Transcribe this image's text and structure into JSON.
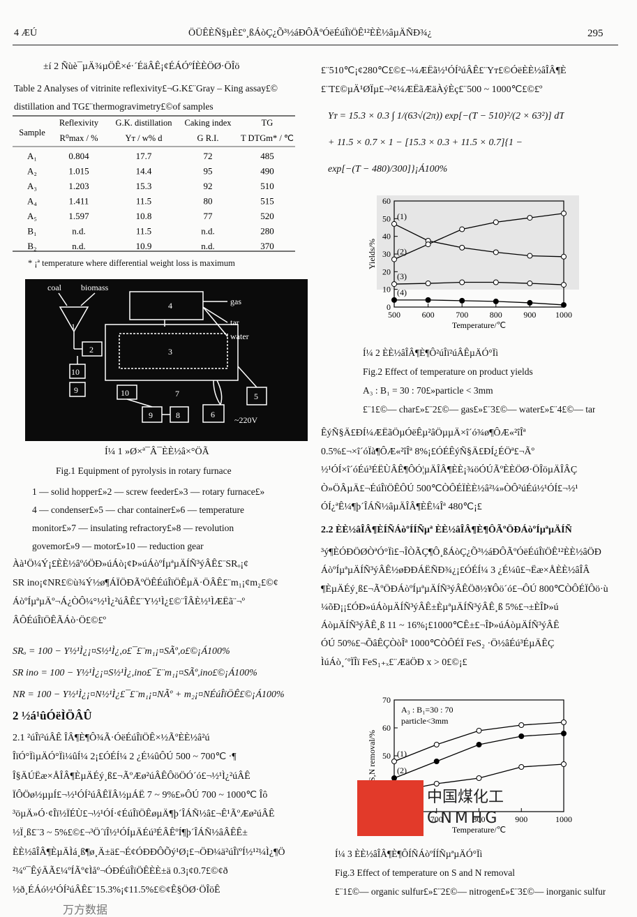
{
  "header": {
    "issue": "4 ÆÚ",
    "title": "ÖÜÊÈÑ§µÈ£º¸ßÁòÇ¿Õ³½áÐÔÃºÓëÉúÎïÖÊ¹²ÈÈ½âµÄÑÐ¾¿",
    "page_number": "295"
  },
  "table": {
    "caption_cn": "±í 2   Ñùè¯µÄ¾µÖÊ×é·´ÉäÂÊ¡¢ÉÁÓºÍÈÈÖØ·ÖÎö",
    "caption_en": [
      "Table 2    Analyses of vitrinite reflexivity£¬G.K£¨Gray – King assay£©",
      "distillation and TG£¨thermogravimetry£©of samples"
    ],
    "header": [
      [
        "Sample"
      ],
      [
        "Reflexivity",
        "R⁰max / %"
      ],
      [
        "G.K. distillation",
        "Yᴛ / w% d"
      ],
      [
        "Caking index",
        "G R.I."
      ],
      [
        "TG",
        "T DTGm* / ℃"
      ]
    ],
    "rows": [
      [
        "A₁",
        "0.804",
        "17.7",
        "72",
        "485"
      ],
      [
        "A₂",
        "1.015",
        "14.4",
        "95",
        "490"
      ],
      [
        "A₃",
        "1.203",
        "15.3",
        "92",
        "510"
      ],
      [
        "A₄",
        "1.411",
        "11.5",
        "80",
        "515"
      ],
      [
        "A₅",
        "1.597",
        "10.8",
        "77",
        "520"
      ],
      [
        "B₁",
        "n.d.",
        "11.5",
        "n.d.",
        "280"
      ],
      [
        "B₂",
        "n.d.",
        "10.9",
        "n.d.",
        "370"
      ]
    ],
    "footnote": "* ¡ª temperature where differential weight loss is maximum"
  },
  "figure1": {
    "labels": [
      "coal",
      "biomass",
      "gas",
      "tar",
      "water",
      "1",
      "2",
      "3",
      "4",
      "5",
      "6",
      "7",
      "8",
      "9",
      "10",
      "10",
      "9",
      "~220V"
    ],
    "caption_cn": "Í¼ 1   »Ø×ª¯Â¯ÈÈ½â×°ÖÃ",
    "caption_en": "Fig.1   Equipment of pyrolysis in rotary furnace",
    "legend": [
      "1 — solid hopper£»2 — screw feeder£»3 — rotary furnace£»",
      "4 — condenser£»5 — char container£»6 — temperature",
      "monitor£»7 — insulating refractory£»8 — revolution",
      "govemor£»9 — motor£»10 — reduction gear"
    ]
  },
  "left_text": [
    "Àà¹Ö¼Ý¡£ÈÈ½âºóÖÐ»úÁò¡¢Þ»úÁòºÍµªµÄÍÑ³ýÂÊ£¨SRₒ¡¢",
    "SR ino¡¢NR£©ù¾Ý½ø¶ÁÏÖÐÃºÖÊÉúÎïÖÊµÄ·ÖÂÊ£¨m₁¡¢m₂£©¢",
    "ÁòºÍµªµÄº¬Á¿ÒÔ¼°½¹Ì¿²úÂÊ£¨Y½¹Ì¿£©¨ÎÂÈ½¹ÌÆËã¨¬º",
    "ÂÔÉúÎïÖÊÃÁò·Ö£©£º"
  ],
  "left_equations": [
    "SRₒ = 100 − Y½¹Ì¿¡¤S½¹Ì¿,o£¯£¨m₁¡¤SÃº,o£©¡Á100%",
    "SR ino = 100 − Y½¹Ì¿¡¤S½¹Ì¿,ino£¯£¨m₁¡¤SÃº,ino£©¡Á100%",
    "NR = 100 − Y½¹Ì¿¡¤N½¹Ì¿£¯£¨m₁¡¤NÃº + m₂¡¤NÉúÎïÖÊ£©¡Á100%"
  ],
  "section_2_heading": "2   ½á¹ûÓëÌÖÂÛ",
  "left_text_2": [
    "2.1   ²úÎï²úÂÊ   ÎÂ¶È¶Ô¾­Ã·ÓëÉúÎïÖÊ×½ÃºÈÈ½â²ú",
    "ÎïÓ°ÏìµÄÓ°Ïì¼ûÍ¼ 2¡£ÓÉÍ¼ 2 ¿É¼ûÔÚ 500 ~ 700℃ ·¶",
    "Î§ÄÚËæ×ÅÎÂ¶ÈµÄÉý¸ß£¬ÃºÆø²úÂÊÔöÖÓ´ó£¬½¹Ì¿²úÂÊ",
    "ÏÔÖø½µµÍ£¬½¹ÓÍ²úÂÊÏÂ½µÁË 7 ~ 9%£»ÔÚ 700 ~ 1000℃ Îô",
    "³öµÄ»Ó·¢Îï½ÏÉÙ£¬½¹ÓÍ·¢ÉúÎïÖÊøµÄ¶þ´ÎÁÑ½â£¬Ê¹ÃºÆø²úÂÊ",
    "½Ï¸ß£¨3 ~ 5%£©£¬³Ö´ïÎ½¹ÓÍµÄÉú³ÉÂÊºÍ¶þ´ÎÁÑ½âÂÊÊ±",
    "ÈÈ½âÎÂ¶ÈµÄÌá¸ß¶ø¸Ä±ä£¬É¢ÓÐÐÔÕý¹Ø¡£¬ÖÐ¼ä²úÎïºÍ½¹²¼Ì¿¶Ö",
    "²¼º¯ÊýÄÃ£¼ºÍÃº¢Ìåº¬ÓÐÉúÎïÖÊÈÈ±ä 0.3¡¢0.7£©¢ð",
    "½ð¸ÉÁó½¹ÓÍ²úÂÊ£¨15.3%¡¢11.5%£©¢Ê§ÖØ·ÖÎöÊ"
  ],
  "right_text": [
    "£¨510℃¡¢280℃£©£¬¼ÆËã½¹ÓÍ²úÂÊ£¨Yᴛ£©ÓëÈÈ½âÎÂ¶È",
    "£¨T£©µÄ¹ØÏµ£¬²¢¼ÆËãÆäÀýÈç£¨500 ~ 1000℃£©£º"
  ],
  "right_equations": [
    "Yᴛ = 15.3 × 0.3 ∫ 1/(63√(2π)) exp[−(T − 510)²/(2 × 63²)] dT",
    "+ 11.5 × 0.7 × 1 − [15.3 × 0.3 + 11.5 × 0.7]{1 −",
    "exp[−(T − 480)/300]}¡Á100%"
  ],
  "figure2": {
    "type": "line",
    "xlabel": "Temperature/℃",
    "ylabel": "Yields/%",
    "x": [
      500,
      600,
      700,
      800,
      900,
      1000
    ],
    "xlim": [
      500,
      1000
    ],
    "ylim": [
      0,
      60
    ],
    "xticks": [
      500,
      600,
      700,
      800,
      900,
      1000
    ],
    "yticks": [
      0,
      10,
      20,
      30,
      40,
      50,
      60
    ],
    "color": "#000000",
    "series": [
      {
        "name": "(1)",
        "marker": "open",
        "values": [
          47,
          37.5,
          33.6,
          31,
          29,
          28.5
        ]
      },
      {
        "name": "(2)",
        "marker": "open",
        "values": [
          27,
          35.5,
          44,
          48,
          50.5,
          53
        ]
      },
      {
        "name": "(3)",
        "marker": "open",
        "values": [
          13,
          13.4,
          14,
          14,
          13.4,
          12.6
        ]
      },
      {
        "name": "(4)",
        "marker": "filled",
        "values": [
          4,
          4,
          3.6,
          3.2,
          2.4,
          1.2
        ]
      }
    ],
    "caption": [
      "Í¼ 2   ÈÈ½âÎÂ¶È¶Ô²úÎï²úÂÊµÄÓ°Ïì",
      "Fig.2   Effect of temperature on product yields",
      "A₃ : B₁ = 30 : 70£»particle < 3mm",
      "£¨1£©— char£»£¨2£©— gas£»£¨3£©— water£»£¨4£©— tar"
    ]
  },
  "right_text_2": [
    "ÊýÑ§Ä£ÐÍ¼ÆËãÖµÓëÊµ²âÖµµÄ×î´ó¾ø¶ÔÆ«²îÎª",
    "0.5%£¬×î´óÏà¶ÔÆ«²îÎª 8%¡£ÓÉÊýÑ§Ä£ÐÍ¿ÉÖª£¬Ãº",
    "½¹ÓÍ×î´óÉú³ÉËÙÂÊ¶ÔÓ¦µÄÎÂ¶ÈÈ¡¾öÓÚÃºÈÈÖØ·ÖÎöµÄÎÂÇ",
    "Ò»ÖÂµÄ£¬ÉúÎïÖÊÔÚ 500℃ÒÔÉÏÈÈ½â²¼»ÒÔ²úÉú½¹ÓÍ£¬½¹",
    "ÓÍ¿ªÊ¼¶þ´ÎÁÑ½âµÄÎÂ¶ÈÊ¼Îª 480℃¡£"
  ],
  "section_2_2_heading": "2.2   ÈÈ½âÎÂ¶ÈÍÑÁòºÍÍÑµª   ÈÈ½âÎÂ¶È¶ÔÃºÖÐÁòºÍµªµÄÍÑ",
  "right_text_3": [
    "³ý¶ÈÓÐÖØÒªÓ°Ïì£¬ÎÒÃÇ¶Ô¸ßÁòÇ¿Õ³½áÐÔÃºÓëÉúÎïÖÊ¹²ÈÈ½âÖÐ",
    "ÁòºÍµªµÄÍÑ³ýÂÊ½øÐÐÁËÑÐ¾¿¡£ÓÉÍ¼ 3 ¿É¼û£¬Ëæ×ÅÈÈ½âÎÂ",
    "¶ÈµÄÉý¸ß£¬ÃºÖÐÁòºÍµªµÄÍÑ³ýÂÊÖð½¥Ôö´ó£¬ÔÚ 800℃ÒÔÉÏÔö·ù",
    "¼õÐ¡¡£ÓÐ»úÁòµÄÍÑ³ýÂÊ±ÈµªµÄÍÑ³ýÂÊ¸ß 5%£¬±ÈÎÞ»ú",
    "ÁòµÄÍÑ³ýÂÊ¸ß 11 ~ 16%¡£1000℃Ê±£¬ÎÞ»úÁòµÄÍÑ³ýÂÊ",
    "ÓÚ 50%£¬ÕâÊÇÒòÎª 1000℃ÒÔÉÏ FeS₂ ·Ö½âÉú³ÉµÄÊÇ",
    "ÌúÁò¸´ºÏÎï FeS₁₊ₓ£¨ÆäÖÐ x > 0£©¡£"
  ],
  "figure3": {
    "type": "line",
    "xlabel": "Temperature/℃",
    "ylabel": "S,N removal/%",
    "annotations": [
      "A₃ : B₁=30 : 70",
      "particle<3mm"
    ],
    "x": [
      600,
      700,
      800,
      900,
      1000
    ],
    "xlim": [
      600,
      1000
    ],
    "ylim": [
      30,
      70
    ],
    "xticks": [
      600,
      700,
      800,
      900,
      1000
    ],
    "yticks": [
      30,
      40,
      50,
      60,
      70
    ],
    "color": "#000000",
    "series": [
      {
        "name": "(1)",
        "marker": "open",
        "values": [
          48,
          54,
          59,
          61,
          62
        ]
      },
      {
        "name": "(2)",
        "marker": "filled",
        "values": [
          42,
          48,
          54,
          57,
          58
        ]
      },
      {
        "name": "(3)",
        "marker": "open",
        "values": [
          37,
          40,
          42,
          46,
          47
        ]
      }
    ],
    "caption": [
      "Í¼ 3   ÈÈ½âÎÂ¶È¶ÔÍÑÁòºÍÍÑµªµÄÓ°Ïì",
      "Fig.3   Effect of temperature on S and N removal",
      "£¨1£©— organic sulfur£»£¨2£©— nitrogen£»£¨3£©— inorganic sulfur"
    ]
  },
  "watermarks": [
    "中国煤化工",
    "CNMHG",
    "万方数据"
  ]
}
